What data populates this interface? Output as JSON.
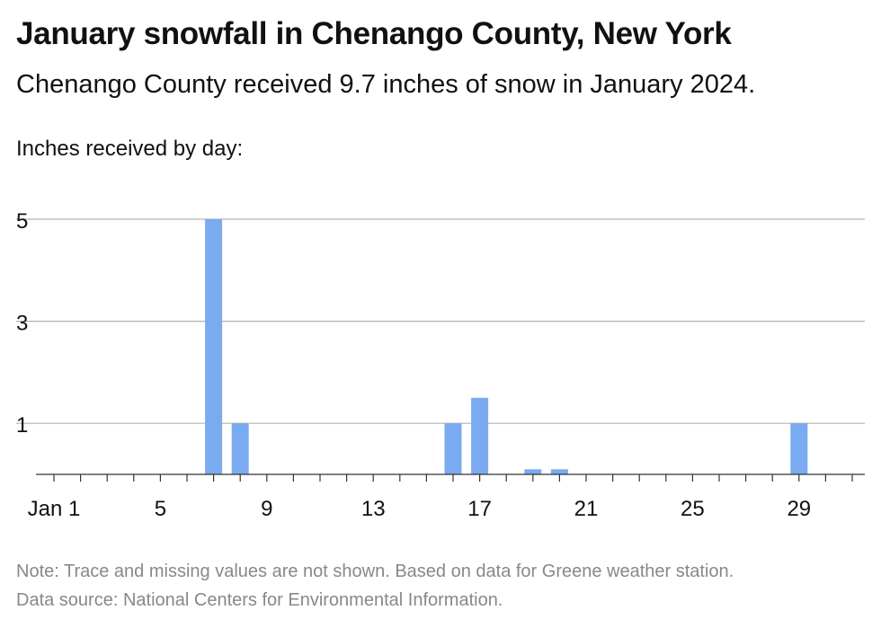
{
  "header": {
    "title": "January snowfall in Chenango County, New York",
    "subtitle": "Chenango County received 9.7 inches of snow in January 2024.",
    "ylabel": "Inches received by day:"
  },
  "footer": {
    "note": "Note: Trace and missing values are not shown. Based on data for Greene weather station.",
    "source": "Data source: National Centers for Environmental Information."
  },
  "colors": {
    "bar": "#7aaaf0",
    "grid": "#b3b3b3",
    "axis": "#333333"
  },
  "chart_data": {
    "type": "bar",
    "title": "January snowfall in Chenango County, New York",
    "ylabel": "Inches received by day:",
    "x_unit": "day of January 2024",
    "xlim": [
      1,
      31
    ],
    "ylim": [
      0,
      5
    ],
    "y_ticks": [
      1,
      3,
      5
    ],
    "y_tick_labels": [
      "1",
      "3",
      "5"
    ],
    "x_ticks": [
      1,
      5,
      9,
      13,
      17,
      21,
      25,
      29
    ],
    "x_tick_labels": [
      "Jan 1",
      "5",
      "9",
      "13",
      "17",
      "21",
      "25",
      "29"
    ],
    "grid": true,
    "legend": "none",
    "x": [
      7,
      8,
      16,
      17,
      19,
      20,
      29
    ],
    "values": [
      5,
      1,
      1,
      1.5,
      0.1,
      0.1,
      1
    ]
  }
}
